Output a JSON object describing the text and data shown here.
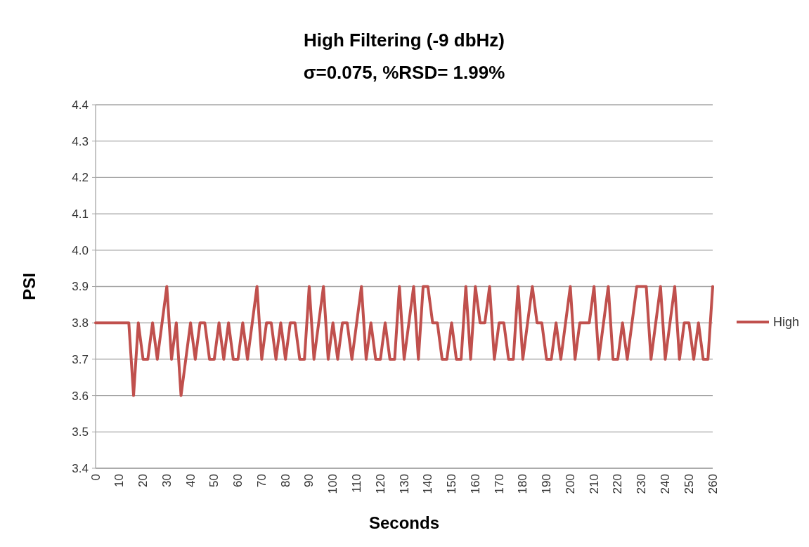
{
  "chart_data": {
    "type": "line",
    "title": "High Filtering (-9 dbHz)",
    "subtitle": "σ=0.075, %RSD= 1.99%",
    "xlabel": "Seconds",
    "ylabel": "PSI",
    "x": [
      0,
      2,
      4,
      6,
      8,
      10,
      12,
      14,
      16,
      18,
      20,
      22,
      24,
      26,
      28,
      30,
      32,
      34,
      36,
      38,
      40,
      42,
      44,
      46,
      48,
      50,
      52,
      54,
      56,
      58,
      60,
      62,
      64,
      66,
      68,
      70,
      72,
      74,
      76,
      78,
      80,
      82,
      84,
      86,
      88,
      90,
      92,
      94,
      96,
      98,
      100,
      102,
      104,
      106,
      108,
      110,
      112,
      114,
      116,
      118,
      120,
      122,
      124,
      126,
      128,
      130,
      132,
      134,
      136,
      138,
      140,
      142,
      144,
      146,
      148,
      150,
      152,
      154,
      156,
      158,
      160,
      162,
      164,
      166,
      168,
      170,
      172,
      174,
      176,
      178,
      180,
      182,
      184,
      186,
      188,
      190,
      192,
      194,
      196,
      198,
      200,
      202,
      204,
      206,
      208,
      210,
      212,
      214,
      216,
      218,
      220,
      222,
      224,
      226,
      228,
      230,
      232,
      234,
      236,
      238,
      240,
      242,
      244,
      246,
      248,
      250,
      252,
      254,
      256,
      258,
      260
    ],
    "series": [
      {
        "name": "High",
        "color": "#c0504d",
        "values": [
          3.8,
          3.8,
          3.8,
          3.8,
          3.8,
          3.8,
          3.8,
          3.8,
          3.6,
          3.8,
          3.7,
          3.7,
          3.8,
          3.7,
          3.8,
          3.9,
          3.7,
          3.8,
          3.6,
          3.7,
          3.8,
          3.7,
          3.8,
          3.8,
          3.7,
          3.7,
          3.8,
          3.7,
          3.8,
          3.7,
          3.7,
          3.8,
          3.7,
          3.8,
          3.9,
          3.7,
          3.8,
          3.8,
          3.7,
          3.8,
          3.7,
          3.8,
          3.8,
          3.7,
          3.7,
          3.9,
          3.7,
          3.8,
          3.9,
          3.7,
          3.8,
          3.7,
          3.8,
          3.8,
          3.7,
          3.8,
          3.9,
          3.7,
          3.8,
          3.7,
          3.7,
          3.8,
          3.7,
          3.7,
          3.9,
          3.7,
          3.8,
          3.9,
          3.7,
          3.9,
          3.9,
          3.8,
          3.8,
          3.7,
          3.7,
          3.8,
          3.7,
          3.7,
          3.9,
          3.7,
          3.9,
          3.8,
          3.8,
          3.9,
          3.7,
          3.8,
          3.8,
          3.7,
          3.7,
          3.9,
          3.7,
          3.8,
          3.9,
          3.8,
          3.8,
          3.7,
          3.7,
          3.8,
          3.7,
          3.8,
          3.9,
          3.7,
          3.8,
          3.8,
          3.8,
          3.9,
          3.7,
          3.8,
          3.9,
          3.7,
          3.7,
          3.8,
          3.7,
          3.8,
          3.9,
          3.9,
          3.9,
          3.7,
          3.8,
          3.9,
          3.7,
          3.8,
          3.9,
          3.7,
          3.8,
          3.8,
          3.7,
          3.8,
          3.7,
          3.7,
          3.9
        ]
      }
    ],
    "xlim": [
      0,
      260
    ],
    "xticks": [
      0,
      10,
      20,
      30,
      40,
      50,
      60,
      70,
      80,
      90,
      100,
      110,
      120,
      130,
      140,
      150,
      160,
      170,
      180,
      190,
      200,
      210,
      220,
      230,
      240,
      250,
      260
    ],
    "ylim": [
      3.4,
      4.4
    ],
    "yticks": [
      3.4,
      3.5,
      3.6,
      3.7,
      3.8,
      3.9,
      {
        "value": 4,
        "label": "4.0"
      },
      4.1,
      4.2,
      4.3,
      4.4
    ],
    "grid": "y",
    "legend": "right",
    "marker": "none",
    "line_style": "solid"
  }
}
